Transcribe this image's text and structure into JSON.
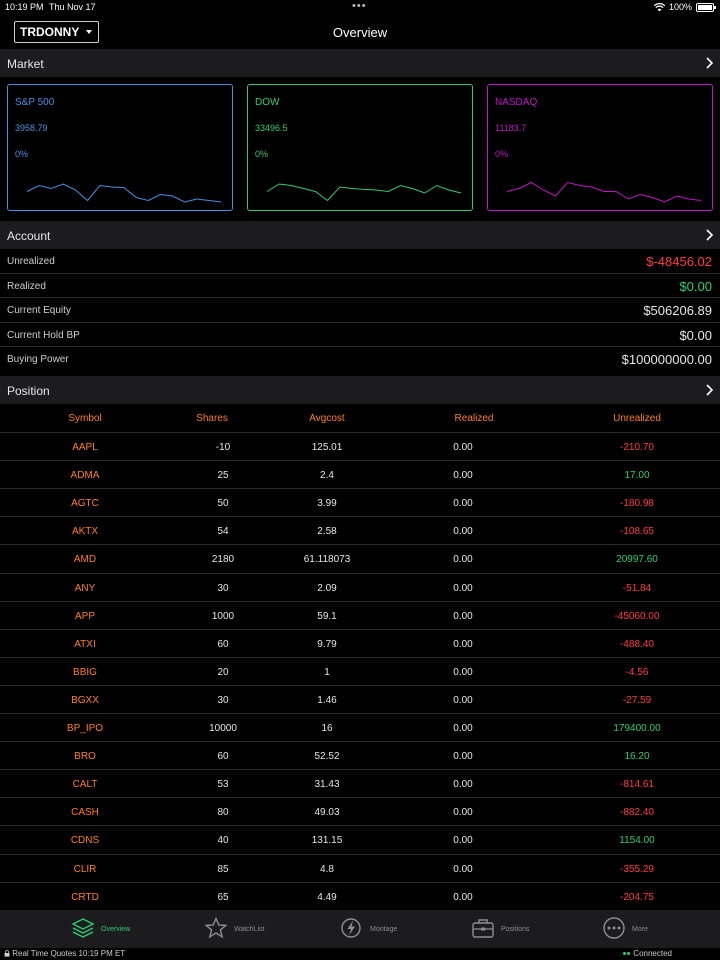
{
  "status": {
    "time": "10:19 PM",
    "date": "Thu Nov 17",
    "battery": "100%"
  },
  "header": {
    "account": "TRDONNY",
    "title": "Overview"
  },
  "market": {
    "title": "Market",
    "cards": [
      {
        "name": "S&P 500",
        "value": "3958.79",
        "pct": "0%",
        "color": "#4a90e2",
        "line": [
          0.55,
          0.35,
          0.45,
          0.3,
          0.5,
          0.85,
          0.35,
          0.4,
          0.42,
          0.75,
          0.85,
          0.65,
          0.7,
          0.9,
          0.8,
          0.85,
          0.9
        ]
      },
      {
        "name": "DOW",
        "value": "33496.5",
        "pct": "0%",
        "color": "#2ecc71",
        "line": [
          0.55,
          0.3,
          0.35,
          0.45,
          0.55,
          0.85,
          0.4,
          0.45,
          0.48,
          0.5,
          0.55,
          0.35,
          0.45,
          0.6,
          0.35,
          0.5,
          0.6
        ]
      },
      {
        "name": "NASDAQ",
        "value": "11183.7",
        "pct": "0%",
        "color": "#c015c8",
        "line": [
          0.55,
          0.45,
          0.25,
          0.5,
          0.7,
          0.25,
          0.35,
          0.4,
          0.55,
          0.55,
          0.8,
          0.65,
          0.75,
          0.9,
          0.7,
          0.8,
          0.85
        ]
      }
    ]
  },
  "account": {
    "title": "Account",
    "rows": [
      {
        "label": "Unrealized",
        "value": "$-48456.02",
        "color": "#ff3b41"
      },
      {
        "label": "Realized",
        "value": "$0.00",
        "color": "#2ecc71"
      },
      {
        "label": "Current Equity",
        "value": "$506206.89",
        "color": "#e6e6e6"
      },
      {
        "label": "Current Hold BP",
        "value": "$0.00",
        "color": "#e6e6e6"
      },
      {
        "label": "Buying Power",
        "value": "$100000000.00",
        "color": "#e6e6e6"
      }
    ]
  },
  "positions": {
    "title": "Position",
    "headers": {
      "symbol": "Symbol",
      "shares": "Shares",
      "avgcost": "Avgcost",
      "realized": "Realized",
      "unrealized": "Unrealized"
    },
    "rows": [
      {
        "symbol": "AAPL",
        "shares": "-10",
        "avgcost": "125.01",
        "realized": "0.00",
        "unrealized": "-210.70",
        "dir": "neg"
      },
      {
        "symbol": "ADMA",
        "shares": "25",
        "avgcost": "2.4",
        "realized": "0.00",
        "unrealized": "17.00",
        "dir": "pos"
      },
      {
        "symbol": "AGTC",
        "shares": "50",
        "avgcost": "3.99",
        "realized": "0.00",
        "unrealized": "-180.98",
        "dir": "neg"
      },
      {
        "symbol": "AKTX",
        "shares": "54",
        "avgcost": "2.58",
        "realized": "0.00",
        "unrealized": "-108.65",
        "dir": "neg"
      },
      {
        "symbol": "AMD",
        "shares": "2180",
        "avgcost": "61.118073",
        "realized": "0.00",
        "unrealized": "20997.60",
        "dir": "pos"
      },
      {
        "symbol": "ANY",
        "shares": "30",
        "avgcost": "2.09",
        "realized": "0.00",
        "unrealized": "-51.84",
        "dir": "neg"
      },
      {
        "symbol": "APP",
        "shares": "1000",
        "avgcost": "59.1",
        "realized": "0.00",
        "unrealized": "-45060.00",
        "dir": "neg"
      },
      {
        "symbol": "ATXI",
        "shares": "60",
        "avgcost": "9.79",
        "realized": "0.00",
        "unrealized": "-488.40",
        "dir": "neg"
      },
      {
        "symbol": "BBIG",
        "shares": "20",
        "avgcost": "1",
        "realized": "0.00",
        "unrealized": "-4.56",
        "dir": "neg"
      },
      {
        "symbol": "BGXX",
        "shares": "30",
        "avgcost": "1.46",
        "realized": "0.00",
        "unrealized": "-27.59",
        "dir": "neg"
      },
      {
        "symbol": "BP_IPO",
        "shares": "10000",
        "avgcost": "16",
        "realized": "0.00",
        "unrealized": "179400.00",
        "dir": "pos"
      },
      {
        "symbol": "BRO",
        "shares": "60",
        "avgcost": "52.52",
        "realized": "0.00",
        "unrealized": "16.20",
        "dir": "pos"
      },
      {
        "symbol": "CALT",
        "shares": "53",
        "avgcost": "31.43",
        "realized": "0.00",
        "unrealized": "-814.61",
        "dir": "neg"
      },
      {
        "symbol": "CASH",
        "shares": "80",
        "avgcost": "49.03",
        "realized": "0.00",
        "unrealized": "-882.40",
        "dir": "neg"
      },
      {
        "symbol": "CDNS",
        "shares": "40",
        "avgcost": "131.15",
        "realized": "0.00",
        "unrealized": "1154.00",
        "dir": "pos"
      },
      {
        "symbol": "CLIR",
        "shares": "85",
        "avgcost": "4.8",
        "realized": "0.00",
        "unrealized": "-355.29",
        "dir": "neg"
      },
      {
        "symbol": "CRTD",
        "shares": "65",
        "avgcost": "4.49",
        "realized": "0.00",
        "unrealized": "-204.75",
        "dir": "neg"
      }
    ]
  },
  "tabs": [
    {
      "label": "Overview",
      "icon": "layers-icon",
      "active": true
    },
    {
      "label": "WatchList",
      "icon": "star-icon",
      "active": false
    },
    {
      "label": "Montage",
      "icon": "bolt-icon",
      "active": false
    },
    {
      "label": "Positions",
      "icon": "briefcase-icon",
      "active": false
    },
    {
      "label": "More",
      "icon": "more-icon",
      "active": false
    }
  ],
  "footer": {
    "quotes": "Real Time Quotes 10:19  PM ET",
    "connection": "Connected"
  },
  "colors": {
    "accent": "#ff7f1f",
    "positive": "#2ecc71",
    "negative": "#ff3b41",
    "tab_active": "#2ecc71"
  }
}
